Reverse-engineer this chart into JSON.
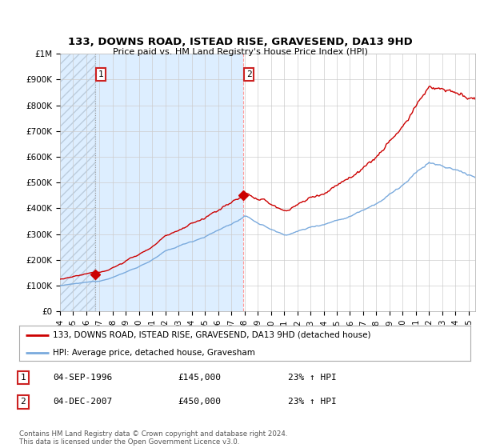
{
  "title_line1": "133, DOWNS ROAD, ISTEAD RISE, GRAVESEND, DA13 9HD",
  "title_line2": "Price paid vs. HM Land Registry's House Price Index (HPI)",
  "ylim": [
    0,
    1000000
  ],
  "yticks": [
    0,
    100000,
    200000,
    300000,
    400000,
    500000,
    600000,
    700000,
    800000,
    900000,
    1000000
  ],
  "ytick_labels": [
    "£0",
    "£100K",
    "£200K",
    "£300K",
    "£400K",
    "£500K",
    "£600K",
    "£700K",
    "£800K",
    "£900K",
    "£1M"
  ],
  "xlim_start": 1994.0,
  "xlim_end": 2025.5,
  "xticks": [
    1994,
    1995,
    1996,
    1997,
    1998,
    1999,
    2000,
    2001,
    2002,
    2003,
    2004,
    2005,
    2006,
    2007,
    2008,
    2009,
    2010,
    2011,
    2012,
    2013,
    2014,
    2015,
    2016,
    2017,
    2018,
    2019,
    2020,
    2021,
    2022,
    2023,
    2024,
    2025
  ],
  "sale1_x": 1996.67,
  "sale1_y": 145000,
  "sale2_x": 2007.92,
  "sale2_y": 450000,
  "red_line_color": "#cc0000",
  "blue_line_color": "#7aaadd",
  "dot_color": "#cc0000",
  "shade_color": "#ddeeff",
  "vline1_color": "#aaaaaa",
  "vline2_color": "#ff9999",
  "legend_red_label": "133, DOWNS ROAD, ISTEAD RISE, GRAVESEND, DA13 9HD (detached house)",
  "legend_blue_label": "HPI: Average price, detached house, Gravesham",
  "annotation1_date": "04-SEP-1996",
  "annotation1_price": "£145,000",
  "annotation1_hpi": "23% ↑ HPI",
  "annotation2_date": "04-DEC-2007",
  "annotation2_price": "£450,000",
  "annotation2_hpi": "23% ↑ HPI",
  "footer": "Contains HM Land Registry data © Crown copyright and database right 2024.\nThis data is licensed under the Open Government Licence v3.0.",
  "background_color": "#ffffff",
  "grid_color": "#cccccc"
}
